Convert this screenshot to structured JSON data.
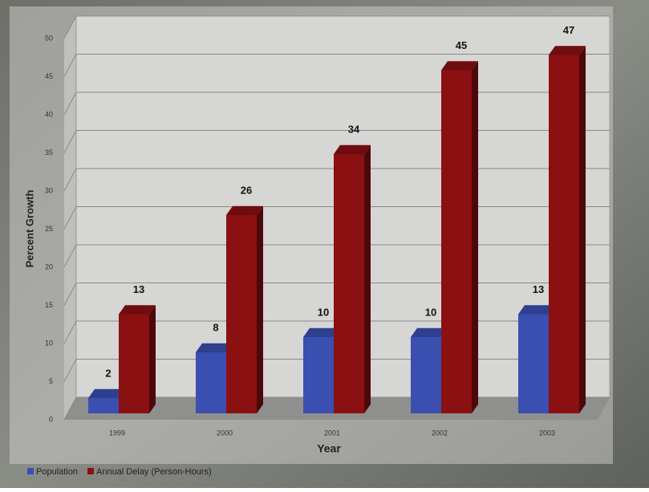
{
  "chart_data": {
    "type": "bar3d",
    "categories": [
      "1999",
      "2000",
      "2001",
      "2002",
      "2003"
    ],
    "series": [
      {
        "name": "Population",
        "color": "#3a4fb0",
        "values": [
          2,
          8,
          10,
          10,
          13
        ]
      },
      {
        "name": "Annual Delay (Person-Hours)",
        "color": "#8b1012",
        "values": [
          13,
          26,
          34,
          45,
          47
        ]
      }
    ],
    "ylim": [
      0,
      50
    ],
    "yticks": [
      0,
      5,
      10,
      15,
      20,
      25,
      30,
      35,
      40,
      45,
      50
    ],
    "ylabel": "Percent Growth",
    "xlabel": "Year",
    "grid": true
  }
}
